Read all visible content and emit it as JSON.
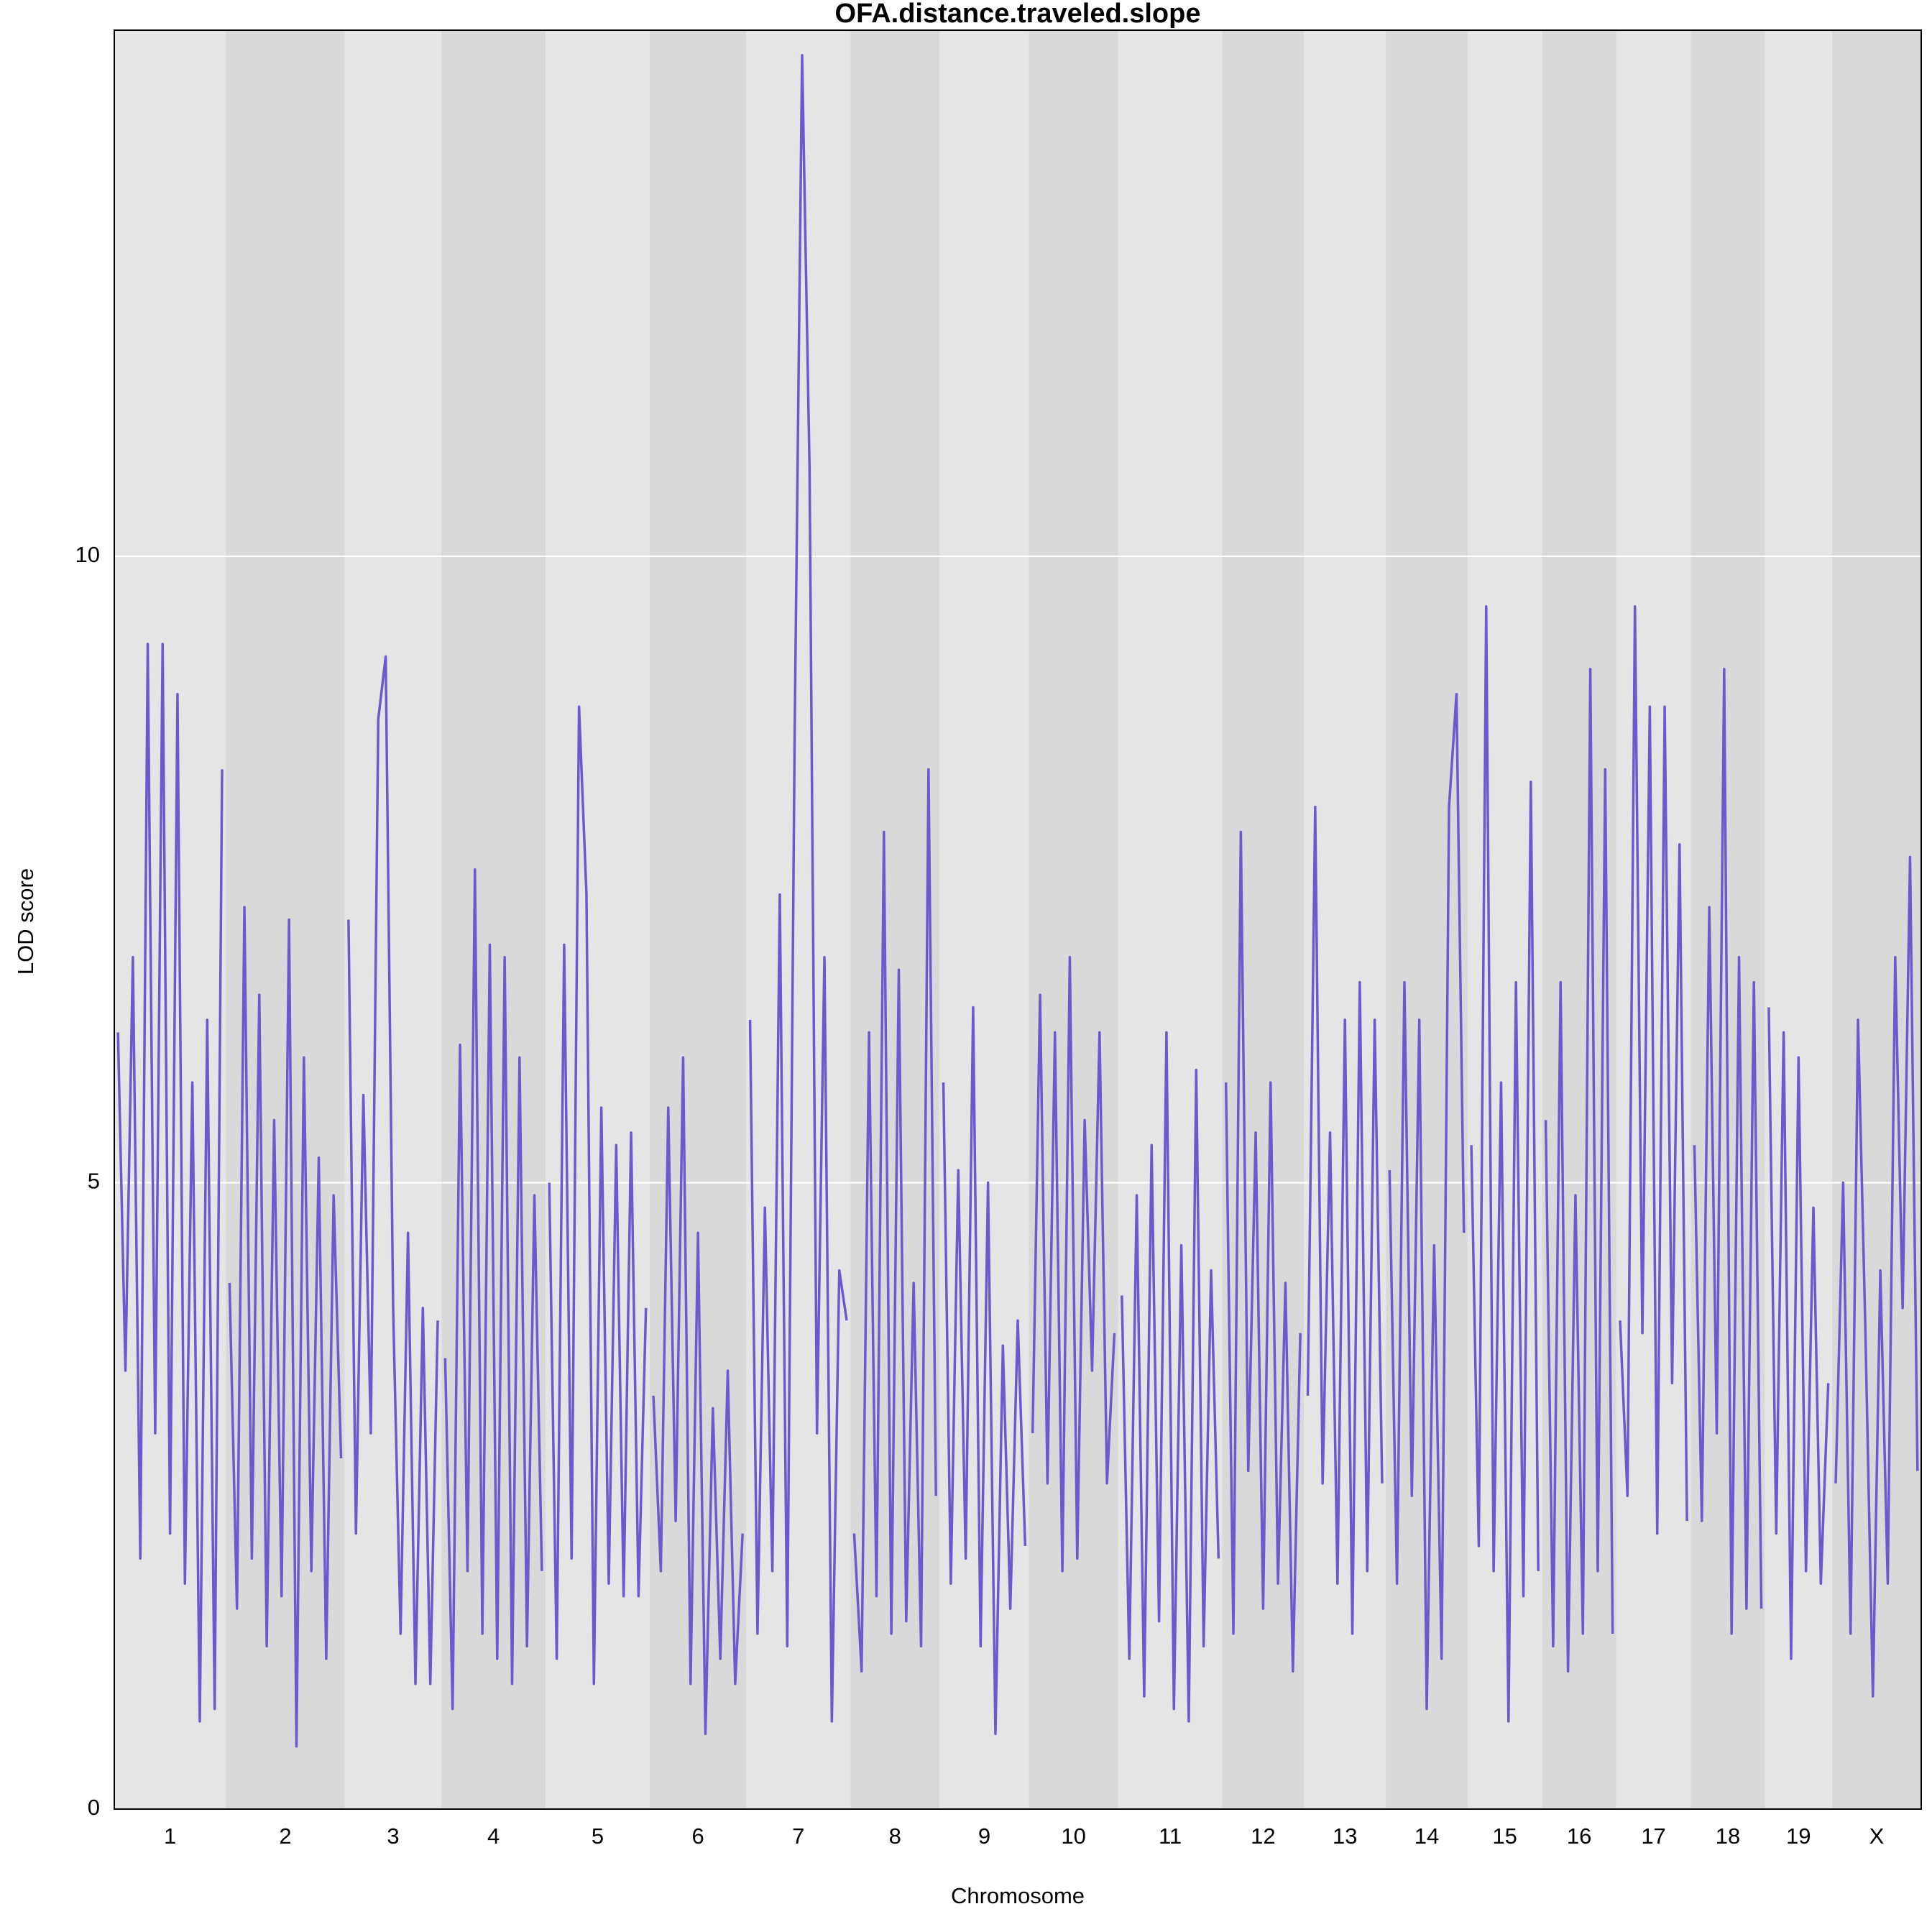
{
  "chart_data": {
    "type": "line",
    "title": "OFA.distance.traveled.slope",
    "x_label": "Chromosome",
    "y_label": "LOD score",
    "categories": [
      "1",
      "2",
      "3",
      "4",
      "5",
      "6",
      "7",
      "8",
      "9",
      "10",
      "11",
      "12",
      "13",
      "14",
      "15",
      "16",
      "17",
      "18",
      "19",
      "X"
    ],
    "band_colors": [
      "#e5e5e5",
      "#d9d9d9"
    ],
    "ylim": [
      0,
      14.2
    ],
    "yticks": [
      0,
      5,
      10
    ],
    "grid": true,
    "series": [
      {
        "color": "#6a5acd",
        "values": [
          [
            6.2,
            3.5,
            6.8,
            2.0,
            9.3,
            3.0,
            9.3,
            2.2,
            8.9,
            1.8,
            5.8,
            0.7,
            6.3,
            0.8,
            8.3
          ],
          [
            4.2,
            1.6,
            7.2,
            2.0,
            6.5,
            1.3,
            5.5,
            1.7,
            7.1,
            0.5,
            6.0,
            1.9,
            5.2,
            1.2,
            4.9,
            2.8
          ],
          [
            7.1,
            2.2,
            5.7,
            3.0,
            8.7,
            9.2,
            4.0,
            1.4,
            4.6,
            1.0,
            4.0,
            1.0,
            3.9
          ],
          [
            3.6,
            0.8,
            6.1,
            1.9,
            7.5,
            1.4,
            6.9,
            1.2,
            6.8,
            1.0,
            6.0,
            1.3,
            4.9,
            1.9
          ],
          [
            5.0,
            1.2,
            6.9,
            2.0,
            8.8,
            7.3,
            1.0,
            5.6,
            1.8,
            5.3,
            1.7,
            5.4,
            1.7,
            4.0
          ],
          [
            3.3,
            1.9,
            5.6,
            2.3,
            6.0,
            1.0,
            4.6,
            0.6,
            3.2,
            1.2,
            3.5,
            1.0,
            2.2
          ],
          [
            6.3,
            1.4,
            4.8,
            1.9,
            7.3,
            1.3,
            8.6,
            14.0,
            10.7,
            3.0,
            6.8,
            0.7,
            4.3,
            3.9
          ],
          [
            2.2,
            1.1,
            6.2,
            1.7,
            7.8,
            1.4,
            6.7,
            1.5,
            4.2,
            1.3,
            8.3,
            2.5
          ],
          [
            5.8,
            1.8,
            5.1,
            2.0,
            6.4,
            1.3,
            5.0,
            0.6,
            3.7,
            1.6,
            3.9,
            2.1
          ],
          [
            3.0,
            6.5,
            2.6,
            6.2,
            1.9,
            6.8,
            2.0,
            5.5,
            3.5,
            6.2,
            2.6,
            3.8
          ],
          [
            4.1,
            1.2,
            4.9,
            0.9,
            5.3,
            1.5,
            6.2,
            0.8,
            4.5,
            0.7,
            5.9,
            1.3,
            4.3,
            2.0
          ],
          [
            5.8,
            1.4,
            7.8,
            2.7,
            5.4,
            1.6,
            5.8,
            1.8,
            4.2,
            1.1,
            3.8
          ],
          [
            3.3,
            8.0,
            2.6,
            5.4,
            1.8,
            6.3,
            1.4,
            6.6,
            1.9,
            6.3,
            2.6
          ],
          [
            5.1,
            1.8,
            6.6,
            2.5,
            6.3,
            0.8,
            4.5,
            1.2,
            8.0,
            8.9,
            4.6
          ],
          [
            5.3,
            2.1,
            9.6,
            1.9,
            5.8,
            0.7,
            6.6,
            1.7,
            8.2,
            1.9
          ],
          [
            5.5,
            1.3,
            6.6,
            1.1,
            4.9,
            1.4,
            9.1,
            1.9,
            8.3,
            1.4
          ],
          [
            3.9,
            2.5,
            9.6,
            3.8,
            8.8,
            2.2,
            8.8,
            3.4,
            7.7,
            2.3
          ],
          [
            5.3,
            2.3,
            7.2,
            3.0,
            9.1,
            1.4,
            6.8,
            1.6,
            6.6,
            1.6
          ],
          [
            6.4,
            2.2,
            6.2,
            1.2,
            6.0,
            1.9,
            4.8,
            1.8,
            3.4
          ],
          [
            2.6,
            5.0,
            1.4,
            6.3,
            3.8,
            0.9,
            4.3,
            1.8,
            6.8,
            4.0,
            7.6,
            2.7
          ]
        ]
      }
    ]
  }
}
